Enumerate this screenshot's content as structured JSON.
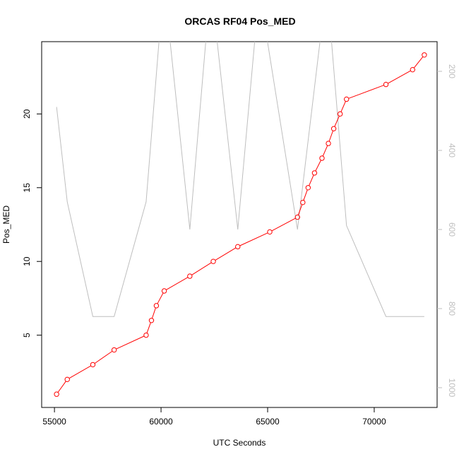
{
  "chart_data": {
    "type": "line",
    "title": "ORCAS RF04 Pos_MED",
    "xlabel": "UTC Seconds",
    "ylabel": "Pos_MED",
    "xlim": [
      54400,
      72950
    ],
    "ylim": [
      0.1,
      24.9
    ],
    "y2lim": [
      1050,
      125
    ],
    "y2_reversed": true,
    "x_ticks": [
      55000,
      60000,
      65000,
      70000
    ],
    "y_ticks": [
      5,
      10,
      15,
      20
    ],
    "y2_ticks": [
      200,
      400,
      600,
      800,
      1000
    ],
    "grid": false,
    "series": [
      {
        "axis": "left",
        "color": "#ff0000",
        "marker": "circle",
        "x": [
          55100,
          55600,
          56800,
          57800,
          59300,
          59550,
          59780,
          60150,
          61350,
          62450,
          63600,
          65100,
          66400,
          66650,
          66900,
          67200,
          67550,
          67850,
          68100,
          68400,
          68700,
          70550,
          71800,
          72350
        ],
        "y": [
          1,
          2,
          3,
          4,
          5,
          6,
          7,
          8,
          9,
          10,
          11,
          12,
          13,
          14,
          15,
          16,
          17,
          18,
          19,
          20,
          21,
          22,
          23,
          24
        ]
      },
      {
        "axis": "right",
        "color": "#bebebe",
        "marker": "none",
        "x": [
          55100,
          55600,
          56800,
          57800,
          59300,
          60000,
          60300,
          61350,
          62200,
          62500,
          63600,
          64500,
          64800,
          66400,
          67600,
          67900,
          68700,
          70550,
          72350
        ],
        "y": [
          290,
          530,
          820,
          820,
          530,
          60,
          60,
          600,
          60,
          60,
          600,
          60,
          60,
          600,
          60,
          60,
          590,
          820,
          820
        ]
      }
    ]
  }
}
